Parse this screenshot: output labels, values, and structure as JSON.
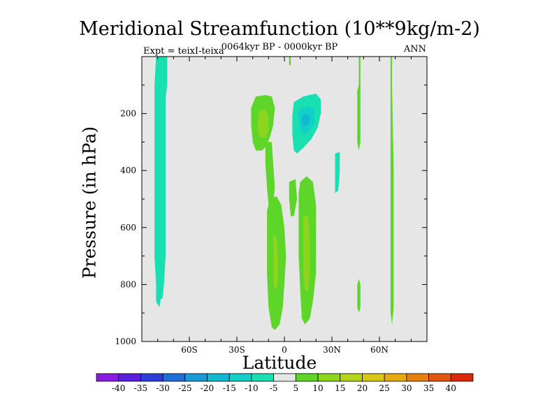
{
  "chart_data": {
    "type": "heatmap",
    "title": "Meridional Streamfunction (10**9kg/m-2)",
    "subtitle": "0064kyr BP - 0000kyr BP",
    "expt_label": "Expt = teixI-teixa",
    "season_label": "ANN",
    "xlabel": "Latitude",
    "ylabel": "Pressure (in hPa)",
    "xlim": [
      -90,
      90
    ],
    "ylim": [
      1000,
      0
    ],
    "y_reversed": true,
    "x_ticks": [
      {
        "value": -60,
        "label": "60S"
      },
      {
        "value": -30,
        "label": "30S"
      },
      {
        "value": 0,
        "label": "0"
      },
      {
        "value": 30,
        "label": "30N"
      },
      {
        "value": 60,
        "label": "60N"
      }
    ],
    "y_ticks": [
      {
        "value": 200,
        "label": "200"
      },
      {
        "value": 400,
        "label": "400"
      },
      {
        "value": 600,
        "label": "600"
      },
      {
        "value": 800,
        "label": "800"
      },
      {
        "value": 1000,
        "label": "1000"
      }
    ],
    "background_color": "#e6e6e6",
    "grid": false,
    "colorbar": {
      "levels": [
        "-40",
        "-35",
        "-30",
        "-25",
        "-20",
        "-15",
        "-10",
        "-5",
        "5",
        "10",
        "15",
        "20",
        "25",
        "30",
        "35",
        "40"
      ],
      "colors": [
        "#8a1be0",
        "#5b1fd9",
        "#2b3fd6",
        "#1f6ed6",
        "#1a9ad8",
        "#10b8d2",
        "#12d0c8",
        "#18e0b0",
        "#e6e6e6",
        "#5ed629",
        "#8ed51f",
        "#b4d418",
        "#d6c814",
        "#e3aa12",
        "#e3800f",
        "#e0560c",
        "#d9280a"
      ],
      "placement": "bottom"
    },
    "regions": [
      {
        "name": "cell-75S",
        "color": "#18e0b0",
        "points": [
          [
            -81,
            0
          ],
          [
            -74,
            0
          ],
          [
            -74,
            100
          ],
          [
            -75,
            150
          ],
          [
            -75,
            300
          ],
          [
            -75,
            500
          ],
          [
            -75,
            700
          ],
          [
            -76,
            800
          ],
          [
            -77,
            850
          ],
          [
            -78,
            850
          ],
          [
            -79,
            880
          ],
          [
            -81,
            860
          ],
          [
            -81,
            800
          ],
          [
            -82,
            700
          ],
          [
            -82,
            500
          ],
          [
            -82,
            300
          ],
          [
            -82,
            100
          ]
        ]
      },
      {
        "name": "cell-15S-upper",
        "color": "#5ed629",
        "points": [
          [
            -18,
            140
          ],
          [
            -12,
            135
          ],
          [
            -8,
            140
          ],
          [
            -6,
            180
          ],
          [
            -7,
            240
          ],
          [
            -9,
            280
          ],
          [
            -11,
            310
          ],
          [
            -14,
            330
          ],
          [
            -18,
            330
          ],
          [
            -20,
            300
          ],
          [
            -21,
            240
          ],
          [
            -21,
            180
          ]
        ]
      },
      {
        "name": "cell-15S-upper-core",
        "color": "#8ed51f",
        "points": [
          [
            -16,
            190
          ],
          [
            -12,
            185
          ],
          [
            -10,
            210
          ],
          [
            -10,
            260
          ],
          [
            -12,
            285
          ],
          [
            -16,
            280
          ],
          [
            -17,
            240
          ]
        ]
      },
      {
        "name": "cell-10S-lower",
        "color": "#5ed629",
        "points": [
          [
            -9,
            500
          ],
          [
            -5,
            490
          ],
          [
            -2,
            520
          ],
          [
            0,
            600
          ],
          [
            1,
            700
          ],
          [
            0,
            800
          ],
          [
            -1,
            880
          ],
          [
            -3,
            940
          ],
          [
            -6,
            960
          ],
          [
            -8,
            950
          ],
          [
            -10,
            880
          ],
          [
            -11,
            760
          ],
          [
            -11,
            640
          ],
          [
            -11,
            540
          ]
        ]
      },
      {
        "name": "cell-10S-lower-core",
        "color": "#8ed51f",
        "points": [
          [
            -7,
            620
          ],
          [
            -5,
            640
          ],
          [
            -4,
            700
          ],
          [
            -4,
            780
          ],
          [
            -5,
            820
          ],
          [
            -7,
            800
          ],
          [
            -7,
            700
          ]
        ]
      },
      {
        "name": "cell-7S-connector",
        "color": "#5ed629",
        "points": [
          [
            -12,
            300
          ],
          [
            -8,
            300
          ],
          [
            -7,
            380
          ],
          [
            -6,
            460
          ],
          [
            -7,
            510
          ],
          [
            -10,
            520
          ],
          [
            -11,
            460
          ],
          [
            -12,
            380
          ]
        ]
      },
      {
        "name": "cell-10N-upper",
        "color": "#18e0b0",
        "points": [
          [
            6,
            160
          ],
          [
            12,
            140
          ],
          [
            20,
            130
          ],
          [
            23,
            150
          ],
          [
            23,
            200
          ],
          [
            21,
            250
          ],
          [
            17,
            290
          ],
          [
            12,
            320
          ],
          [
            8,
            340
          ],
          [
            6,
            330
          ],
          [
            5,
            270
          ],
          [
            5,
            210
          ]
        ]
      },
      {
        "name": "cell-10N-upper-core",
        "color": "#12d0c8",
        "points": [
          [
            9,
            185
          ],
          [
            15,
            175
          ],
          [
            19,
            185
          ],
          [
            19,
            230
          ],
          [
            16,
            260
          ],
          [
            12,
            275
          ],
          [
            10,
            255
          ],
          [
            9,
            220
          ]
        ]
      },
      {
        "name": "cell-10N-upper-peak",
        "color": "#10b8d2",
        "points": [
          [
            11,
            210
          ],
          [
            14,
            200
          ],
          [
            16,
            215
          ],
          [
            15,
            240
          ],
          [
            12,
            245
          ],
          [
            11,
            230
          ]
        ]
      },
      {
        "name": "cell-10N-lower",
        "color": "#5ed629",
        "points": [
          [
            10,
            440
          ],
          [
            14,
            420
          ],
          [
            18,
            440
          ],
          [
            20,
            520
          ],
          [
            20,
            640
          ],
          [
            20,
            760
          ],
          [
            18,
            860
          ],
          [
            16,
            920
          ],
          [
            13,
            940
          ],
          [
            11,
            920
          ],
          [
            10,
            820
          ],
          [
            9,
            700
          ],
          [
            9,
            580
          ],
          [
            9,
            480
          ]
        ]
      },
      {
        "name": "cell-12N-lower-core",
        "color": "#8ed51f",
        "points": [
          [
            12,
            560
          ],
          [
            15,
            560
          ],
          [
            16,
            640
          ],
          [
            16,
            760
          ],
          [
            15,
            820
          ],
          [
            13,
            820
          ],
          [
            12,
            760
          ],
          [
            12,
            640
          ]
        ]
      },
      {
        "name": "cell-33N",
        "color": "#18e0b0",
        "points": [
          [
            32,
            340
          ],
          [
            35,
            335
          ],
          [
            35,
            400
          ],
          [
            34,
            470
          ],
          [
            32,
            480
          ],
          [
            32,
            410
          ]
        ]
      },
      {
        "name": "cell-4N-thin",
        "color": "#5ed629",
        "points": [
          [
            3,
            0
          ],
          [
            4,
            0
          ],
          [
            4,
            30
          ],
          [
            3,
            30
          ]
        ]
      },
      {
        "name": "cell-8N-connector",
        "color": "#5ed629",
        "points": [
          [
            3,
            440
          ],
          [
            7,
            430
          ],
          [
            8,
            500
          ],
          [
            6,
            560
          ],
          [
            4,
            560
          ],
          [
            3,
            500
          ]
        ]
      },
      {
        "name": "cell-47N",
        "color": "#5ed629",
        "points": [
          [
            47,
            0
          ],
          [
            48,
            0
          ],
          [
            48,
            90
          ],
          [
            48,
            300
          ],
          [
            47,
            330
          ],
          [
            46,
            300
          ],
          [
            46,
            120
          ],
          [
            47,
            100
          ]
        ]
      },
      {
        "name": "cell-47N-lower",
        "color": "#5ed629",
        "points": [
          [
            47,
            780
          ],
          [
            48,
            800
          ],
          [
            48,
            880
          ],
          [
            47,
            900
          ],
          [
            46,
            880
          ],
          [
            46,
            800
          ]
        ]
      },
      {
        "name": "cell-68N",
        "color": "#5ed629",
        "points": [
          [
            67,
            0
          ],
          [
            68,
            0
          ],
          [
            68,
            100
          ],
          [
            69,
            400
          ],
          [
            69,
            700
          ],
          [
            69,
            880
          ],
          [
            68,
            940
          ],
          [
            67,
            900
          ],
          [
            67,
            700
          ],
          [
            67,
            400
          ],
          [
            67,
            100
          ]
        ]
      }
    ]
  }
}
